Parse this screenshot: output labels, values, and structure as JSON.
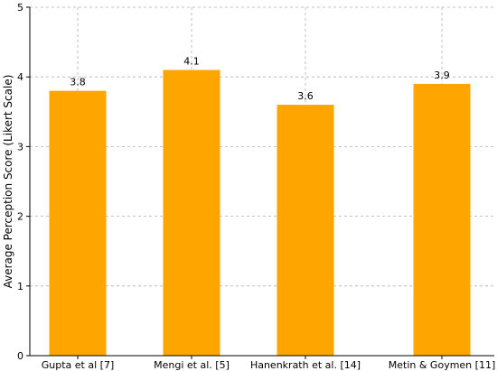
{
  "chart_data": {
    "type": "bar",
    "title": "",
    "xlabel": "",
    "ylabel": "Average Perception Score (Likert Scale)",
    "categories": [
      "Gupta et al [7]",
      "Mengi et al. [5]",
      "Hanenkrath et al. [14]",
      "Metin & Goymen [11]"
    ],
    "values": [
      3.8,
      4.1,
      3.6,
      3.9
    ],
    "data_labels": [
      "3.8",
      "4.1",
      "3.6",
      "3.9"
    ],
    "ylim": [
      0,
      5
    ],
    "yticks": [
      0,
      1,
      2,
      3,
      4,
      5
    ],
    "grid": true,
    "bar_color": "#FFA500"
  }
}
